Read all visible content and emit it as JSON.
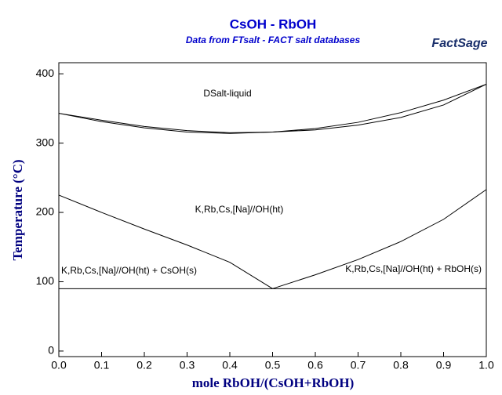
{
  "chart_data": {
    "type": "line",
    "title": "CsOH - RbOH",
    "subtitle": "Data from FTsalt - FACT salt databases",
    "logo": "FactSage",
    "x_label": "mole RbOH/(CsOH+RbOH)",
    "y_label": "Temperature (°C)",
    "annotations": [
      "DSalt-liquid",
      "K,Rb,Cs,[Na]//OH(ht)",
      "K,Rb,Cs,[Na]//OH(ht) + CsOH(s)",
      "K,Rb,Cs,[Na]//OH(ht) + RbOH(s)"
    ],
    "xlim": [
      0,
      1
    ],
    "ylim": [
      -8,
      416
    ],
    "xticks": [
      {
        "value": 0,
        "label": "0.0"
      },
      0.1,
      0.2,
      0.3,
      0.4,
      0.5,
      0.6,
      0.7,
      0.8,
      0.9,
      {
        "value": 1,
        "label": "1.0"
      }
    ],
    "yticks": [
      0,
      100,
      200,
      300,
      400
    ],
    "series": [
      {
        "color": "#000000",
        "x": [
          0,
          0.1,
          0.2,
          0.3,
          0.4,
          0.5,
          0.6,
          0.7,
          0.8,
          0.9,
          1
        ],
        "values": [
          343,
          333,
          324,
          318,
          315,
          316,
          321,
          330,
          344,
          362,
          385
        ]
      },
      {
        "color": "#000000",
        "x": [
          0,
          0.1,
          0.2,
          0.3,
          0.4,
          0.5,
          0.6,
          0.7,
          0.8,
          0.9,
          1
        ],
        "values": [
          343,
          331,
          322,
          316,
          314,
          316,
          319,
          326,
          337,
          355,
          385
        ]
      },
      {
        "color": "#000000",
        "x": [
          0,
          0.1,
          0.2,
          0.3,
          0.4,
          0.5
        ],
        "values": [
          225,
          200,
          176,
          153,
          128,
          90
        ]
      },
      {
        "color": "#000000",
        "x": [
          0.5,
          0.6,
          0.7,
          0.8,
          0.9,
          1
        ],
        "values": [
          90,
          110,
          132,
          158,
          190,
          233
        ]
      },
      {
        "color": "#000000",
        "x": [
          0,
          1
        ],
        "values": [
          90,
          90
        ]
      }
    ]
  }
}
